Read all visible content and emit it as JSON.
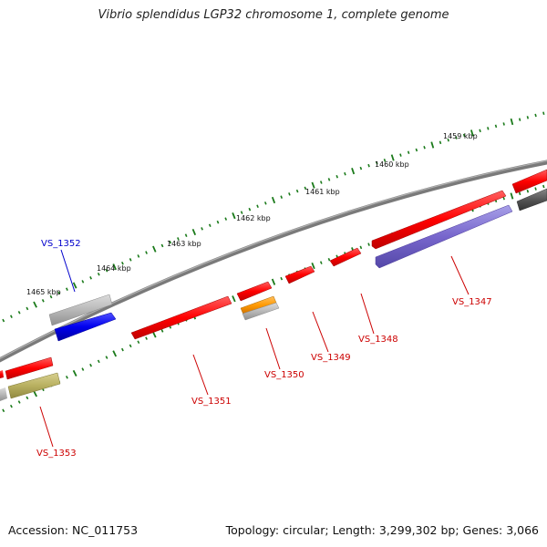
{
  "title": "Vibrio splendidus LGP32 chromosome 1, complete genome",
  "footer": {
    "accession": "Accession: NC_011753",
    "summary": "Topology: circular; Length: 3,299,302 bp; Genes: 3,066"
  },
  "ticks": [
    {
      "label": "1459 kbp"
    },
    {
      "label": "1460 kbp"
    },
    {
      "label": "1461 kbp"
    },
    {
      "label": "1462 kbp"
    },
    {
      "label": "1463 kbp"
    },
    {
      "label": "1464 kbp"
    },
    {
      "label": "1465 kbp"
    }
  ],
  "genes": [
    {
      "id": "VS_1347",
      "color": "#cc0000"
    },
    {
      "id": "VS_1348",
      "color": "#cc0000"
    },
    {
      "id": "VS_1349",
      "color": "#cc0000"
    },
    {
      "id": "VS_1350",
      "color": "#cc0000"
    },
    {
      "id": "VS_1351",
      "color": "#cc0000"
    },
    {
      "id": "VS_1352",
      "color": "#0000cc"
    },
    {
      "id": "VS_1353",
      "color": "#cc0000"
    }
  ],
  "colors": {
    "backbone": "#7a7a7a",
    "tick": "#1a7a1a",
    "gene_red": "#ff0000",
    "gene_blue": "#0000ee",
    "gene_purple": "#7766cc",
    "gene_gray": "#b8b8b8",
    "gene_darkgray": "#555555",
    "gene_orange": "#ff9900",
    "gene_olive": "#b8b060"
  }
}
